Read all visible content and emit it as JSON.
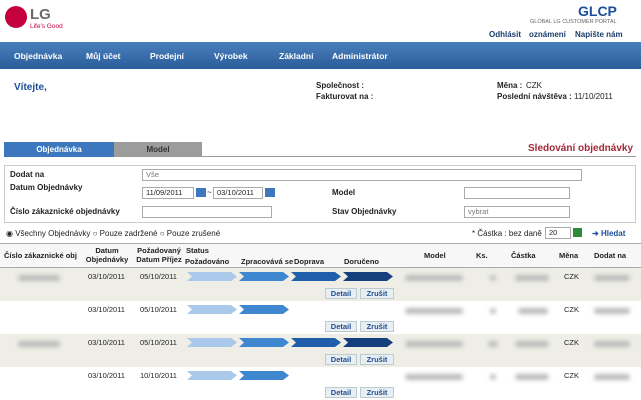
{
  "header": {
    "logo": "LG",
    "tagline": "Life's Good",
    "portal": "GLCP",
    "portal_subtitle": "GLOBAL LG CUSTOMER PORTAL",
    "links": [
      "Odhlásit",
      "oznámení",
      "Napište nám"
    ]
  },
  "nav": [
    "Objednávka",
    "Můj účet",
    "Prodejní",
    "Výrobek",
    "Základní",
    "Administrátor"
  ],
  "welcome": {
    "greeting": "Vítejte,",
    "company_label": "Společnost :",
    "bill_to_label": "Fakturovat na :",
    "currency_label": "Měna :",
    "currency": "CZK",
    "last_visit_label": "Poslední návštěva :",
    "last_visit": "11/10/2011"
  },
  "tabs": [
    "Objednávka",
    "Model"
  ],
  "page_title": "Sledování objednávky",
  "filters": {
    "ship_to_label": "Dodat na",
    "ship_to": "Vše",
    "date_label": "Datum Objednávky",
    "date_from": "11/09/2011",
    "date_sep": "~",
    "date_to": "03/10/2011",
    "model_label": "Model",
    "customer_order_label": "Číslo zákaznické objednávky",
    "status_label": "Stav Objednávky",
    "status": "vybrat"
  },
  "options": {
    "radios": [
      "Všechny Objednávky",
      "Pouze zadržené",
      "Pouze zrušené"
    ],
    "amount_note": "* Částka : bez daně",
    "page_size": 20,
    "search": "Hledat"
  },
  "table": {
    "headers": [
      "Číslo zákaznické obj",
      "Datum Objednávky",
      "Požadovaný Datum Příjez",
      "Status",
      "Model",
      "Ks.",
      "Částka",
      "Měna",
      "Dodat na"
    ],
    "status_steps": [
      "Požadováno",
      "Zpracovává se",
      "Doprava",
      "Doručeno"
    ],
    "rows": [
      {
        "order_date": "03/10/2011",
        "requested_date": "05/10/2011",
        "currency": "CZK",
        "actions": [
          "Detail",
          "Zrušit"
        ]
      },
      {
        "order_date": "03/10/2011",
        "requested_date": "05/10/2011",
        "currency": "CZK",
        "actions": [
          "Detail",
          "Zrušit"
        ]
      },
      {
        "order_date": "03/10/2011",
        "requested_date": "05/10/2011",
        "currency": "CZK",
        "actions": [
          "Detail",
          "Zrušit"
        ]
      },
      {
        "order_date": "03/10/2011",
        "requested_date": "10/10/2011",
        "currency": "CZK",
        "actions": [
          "Detail",
          "Zrušit"
        ]
      }
    ]
  }
}
